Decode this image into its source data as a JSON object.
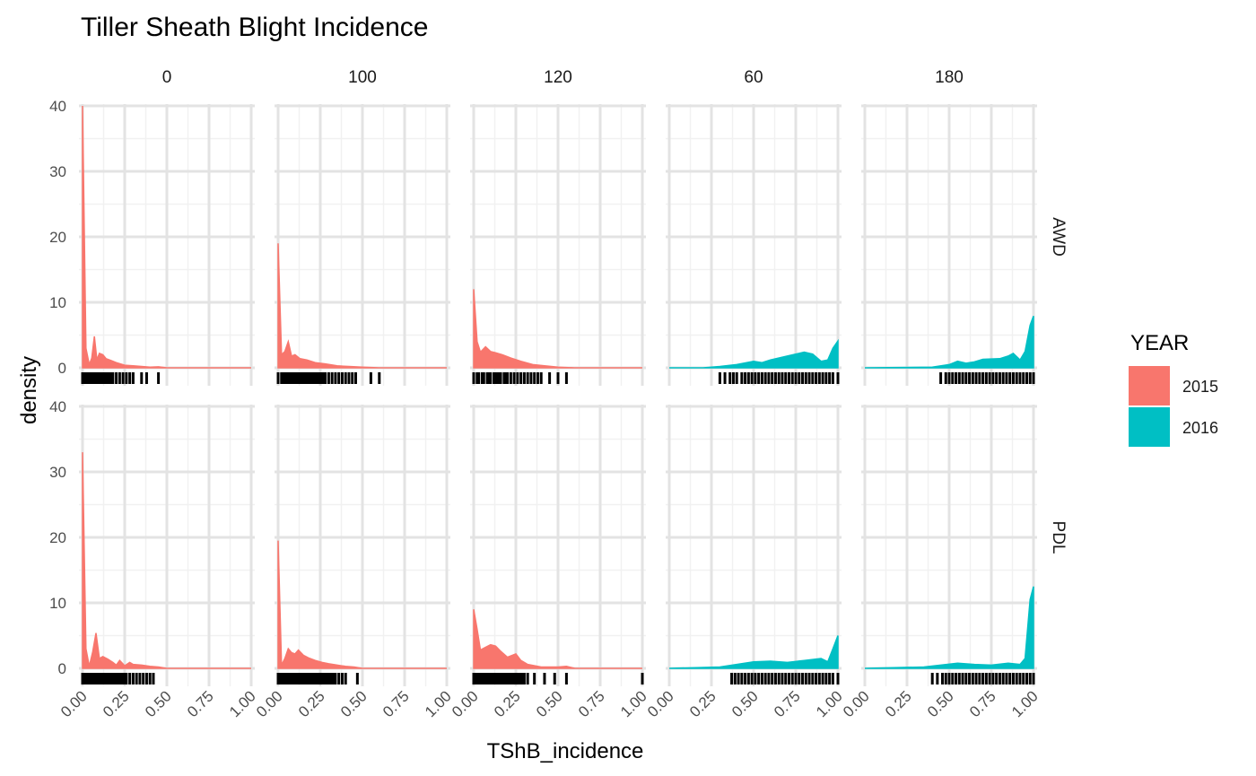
{
  "chart_data": {
    "type": "area",
    "title": "Tiller Sheath Blight Incidence",
    "xlabel": "TShB_incidence",
    "ylabel": "density",
    "xlim": [
      0,
      1
    ],
    "ylim": [
      0,
      40
    ],
    "x_ticks": [
      "0.00",
      "0.25",
      "0.50",
      "0.75",
      "1.00"
    ],
    "y_ticks": [
      "0",
      "10",
      "20",
      "30",
      "40"
    ],
    "grid": true,
    "rug": true,
    "col_facets": [
      "0",
      "100",
      "120",
      "60",
      "180"
    ],
    "row_facets": [
      "AWD",
      "PDL"
    ],
    "legend": {
      "title": "YEAR",
      "position": "right",
      "entries": [
        {
          "label": "2015",
          "color": "#F8766D"
        },
        {
          "label": "2016",
          "color": "#00BFC4"
        }
      ]
    },
    "panels": [
      {
        "row": "AWD",
        "col": "0",
        "year": "2015",
        "density": [
          [
            0,
            40
          ],
          [
            0.02,
            3
          ],
          [
            0.04,
            0.5
          ],
          [
            0.055,
            1.5
          ],
          [
            0.07,
            4.8
          ],
          [
            0.085,
            1.2
          ],
          [
            0.1,
            2.2
          ],
          [
            0.12,
            2.0
          ],
          [
            0.14,
            1.4
          ],
          [
            0.17,
            1.1
          ],
          [
            0.2,
            0.8
          ],
          [
            0.25,
            0.4
          ],
          [
            0.3,
            0.3
          ],
          [
            0.35,
            0.2
          ],
          [
            0.4,
            0.1
          ],
          [
            0.45,
            0.15
          ],
          [
            0.5,
            0
          ],
          [
            1.0,
            0
          ]
        ],
        "rug": [
          0,
          0.01,
          0.02,
          0.03,
          0.04,
          0.05,
          0.06,
          0.07,
          0.08,
          0.09,
          0.1,
          0.11,
          0.12,
          0.13,
          0.14,
          0.15,
          0.16,
          0.17,
          0.18,
          0.2,
          0.22,
          0.24,
          0.26,
          0.28,
          0.3,
          0.35,
          0.38,
          0.45
        ]
      },
      {
        "row": "AWD",
        "col": "100",
        "year": "2015",
        "density": [
          [
            0,
            19
          ],
          [
            0.02,
            2
          ],
          [
            0.04,
            2.5
          ],
          [
            0.06,
            4
          ],
          [
            0.08,
            1.8
          ],
          [
            0.1,
            2.0
          ],
          [
            0.13,
            1.4
          ],
          [
            0.17,
            1.2
          ],
          [
            0.22,
            0.8
          ],
          [
            0.28,
            0.6
          ],
          [
            0.35,
            0.3
          ],
          [
            0.42,
            0.2
          ],
          [
            0.5,
            0.1
          ],
          [
            0.6,
            0
          ],
          [
            1.0,
            0
          ]
        ],
        "rug": [
          0,
          0.02,
          0.03,
          0.04,
          0.05,
          0.06,
          0.07,
          0.08,
          0.09,
          0.1,
          0.11,
          0.12,
          0.13,
          0.14,
          0.15,
          0.16,
          0.17,
          0.18,
          0.19,
          0.2,
          0.21,
          0.22,
          0.23,
          0.24,
          0.25,
          0.26,
          0.27,
          0.28,
          0.3,
          0.32,
          0.34,
          0.36,
          0.38,
          0.4,
          0.42,
          0.44,
          0.46,
          0.55,
          0.6
        ]
      },
      {
        "row": "AWD",
        "col": "120",
        "year": "2015",
        "density": [
          [
            0,
            12
          ],
          [
            0.02,
            4
          ],
          [
            0.04,
            2.4
          ],
          [
            0.07,
            3.2
          ],
          [
            0.1,
            2.5
          ],
          [
            0.13,
            2.3
          ],
          [
            0.17,
            2.0
          ],
          [
            0.22,
            1.5
          ],
          [
            0.28,
            1.0
          ],
          [
            0.35,
            0.5
          ],
          [
            0.42,
            0.3
          ],
          [
            0.5,
            0.1
          ],
          [
            0.6,
            0
          ],
          [
            1.0,
            0
          ]
        ],
        "rug": [
          0,
          0.02,
          0.03,
          0.05,
          0.06,
          0.08,
          0.09,
          0.1,
          0.12,
          0.13,
          0.14,
          0.15,
          0.16,
          0.18,
          0.19,
          0.2,
          0.22,
          0.24,
          0.26,
          0.28,
          0.3,
          0.32,
          0.34,
          0.36,
          0.38,
          0.4,
          0.45,
          0.5,
          0.55
        ]
      },
      {
        "row": "AWD",
        "col": "60",
        "year": "2016",
        "density": [
          [
            0,
            0
          ],
          [
            0.2,
            0
          ],
          [
            0.3,
            0.2
          ],
          [
            0.4,
            0.5
          ],
          [
            0.5,
            1.0
          ],
          [
            0.55,
            0.8
          ],
          [
            0.6,
            1.2
          ],
          [
            0.7,
            1.8
          ],
          [
            0.8,
            2.4
          ],
          [
            0.85,
            2.1
          ],
          [
            0.9,
            1.0
          ],
          [
            0.94,
            1.2
          ],
          [
            0.97,
            3.0
          ],
          [
            1.0,
            4.1
          ]
        ],
        "rug": [
          0.3,
          0.33,
          0.36,
          0.38,
          0.4,
          0.43,
          0.45,
          0.47,
          0.49,
          0.51,
          0.53,
          0.55,
          0.57,
          0.59,
          0.61,
          0.63,
          0.65,
          0.67,
          0.69,
          0.71,
          0.73,
          0.75,
          0.77,
          0.79,
          0.81,
          0.83,
          0.85,
          0.87,
          0.89,
          0.91,
          0.93,
          0.95,
          0.97,
          1.0
        ]
      },
      {
        "row": "AWD",
        "col": "180",
        "year": "2016",
        "density": [
          [
            0,
            0
          ],
          [
            0.4,
            0.1
          ],
          [
            0.5,
            0.5
          ],
          [
            0.55,
            1.0
          ],
          [
            0.6,
            0.7
          ],
          [
            0.65,
            0.9
          ],
          [
            0.7,
            1.3
          ],
          [
            0.8,
            1.4
          ],
          [
            0.85,
            1.8
          ],
          [
            0.88,
            2.2
          ],
          [
            0.92,
            1.2
          ],
          [
            0.95,
            2.5
          ],
          [
            0.98,
            6.5
          ],
          [
            1.0,
            7.9
          ]
        ],
        "rug": [
          0.45,
          0.48,
          0.5,
          0.52,
          0.54,
          0.56,
          0.58,
          0.6,
          0.62,
          0.64,
          0.66,
          0.68,
          0.7,
          0.72,
          0.74,
          0.76,
          0.78,
          0.8,
          0.82,
          0.84,
          0.86,
          0.88,
          0.9,
          0.92,
          0.94,
          0.96,
          0.98,
          1.0
        ]
      },
      {
        "row": "PDL",
        "col": "0",
        "year": "2015",
        "density": [
          [
            0,
            33
          ],
          [
            0.02,
            3
          ],
          [
            0.04,
            0.3
          ],
          [
            0.06,
            2.5
          ],
          [
            0.08,
            5.4
          ],
          [
            0.1,
            1.5
          ],
          [
            0.12,
            1.8
          ],
          [
            0.15,
            1.4
          ],
          [
            0.18,
            0.9
          ],
          [
            0.2,
            0.5
          ],
          [
            0.22,
            1.2
          ],
          [
            0.25,
            0.4
          ],
          [
            0.28,
            0.9
          ],
          [
            0.3,
            0.6
          ],
          [
            0.35,
            0.5
          ],
          [
            0.4,
            0.3
          ],
          [
            0.45,
            0.2
          ],
          [
            0.5,
            0
          ],
          [
            1.0,
            0
          ]
        ],
        "rug": [
          0,
          0.01,
          0.02,
          0.03,
          0.04,
          0.05,
          0.06,
          0.07,
          0.08,
          0.09,
          0.1,
          0.11,
          0.12,
          0.13,
          0.14,
          0.15,
          0.16,
          0.17,
          0.18,
          0.19,
          0.2,
          0.21,
          0.22,
          0.23,
          0.24,
          0.25,
          0.26,
          0.28,
          0.3,
          0.32,
          0.34,
          0.36,
          0.38,
          0.4,
          0.42
        ]
      },
      {
        "row": "PDL",
        "col": "100",
        "year": "2015",
        "density": [
          [
            0,
            19.5
          ],
          [
            0.02,
            0.5
          ],
          [
            0.04,
            1.5
          ],
          [
            0.06,
            3.0
          ],
          [
            0.08,
            2.4
          ],
          [
            0.1,
            2.2
          ],
          [
            0.12,
            2.8
          ],
          [
            0.15,
            2.0
          ],
          [
            0.18,
            1.6
          ],
          [
            0.22,
            1.2
          ],
          [
            0.26,
            0.9
          ],
          [
            0.3,
            0.7
          ],
          [
            0.35,
            0.5
          ],
          [
            0.4,
            0.3
          ],
          [
            0.45,
            0.2
          ],
          [
            0.5,
            0
          ],
          [
            1.0,
            0
          ]
        ],
        "rug": [
          0,
          0.01,
          0.02,
          0.03,
          0.04,
          0.05,
          0.06,
          0.07,
          0.08,
          0.09,
          0.1,
          0.11,
          0.12,
          0.13,
          0.14,
          0.15,
          0.16,
          0.17,
          0.18,
          0.19,
          0.2,
          0.21,
          0.22,
          0.23,
          0.24,
          0.25,
          0.26,
          0.27,
          0.28,
          0.29,
          0.3,
          0.31,
          0.32,
          0.33,
          0.34,
          0.36,
          0.38,
          0.4,
          0.47
        ]
      },
      {
        "row": "PDL",
        "col": "120",
        "year": "2015",
        "density": [
          [
            0,
            9
          ],
          [
            0.02,
            6
          ],
          [
            0.04,
            2.8
          ],
          [
            0.07,
            3.2
          ],
          [
            0.1,
            3.6
          ],
          [
            0.13,
            3.4
          ],
          [
            0.16,
            2.6
          ],
          [
            0.2,
            1.7
          ],
          [
            0.25,
            2.2
          ],
          [
            0.28,
            1.2
          ],
          [
            0.32,
            0.6
          ],
          [
            0.4,
            0.2
          ],
          [
            0.5,
            0.2
          ],
          [
            0.55,
            0.3
          ],
          [
            0.6,
            0
          ],
          [
            1.0,
            0
          ]
        ],
        "rug": [
          0,
          0.01,
          0.02,
          0.03,
          0.04,
          0.05,
          0.06,
          0.07,
          0.08,
          0.09,
          0.1,
          0.11,
          0.12,
          0.13,
          0.14,
          0.15,
          0.16,
          0.17,
          0.18,
          0.19,
          0.2,
          0.21,
          0.22,
          0.23,
          0.24,
          0.25,
          0.26,
          0.27,
          0.28,
          0.29,
          0.3,
          0.32,
          0.36,
          0.42,
          0.48,
          0.55,
          1.0
        ]
      },
      {
        "row": "PDL",
        "col": "60",
        "year": "2016",
        "density": [
          [
            0,
            0
          ],
          [
            0.3,
            0.2
          ],
          [
            0.4,
            0.6
          ],
          [
            0.5,
            1.0
          ],
          [
            0.6,
            1.1
          ],
          [
            0.7,
            0.9
          ],
          [
            0.8,
            1.2
          ],
          [
            0.9,
            1.5
          ],
          [
            0.94,
            1.0
          ],
          [
            0.97,
            3.0
          ],
          [
            1.0,
            5.0
          ]
        ],
        "rug": [
          0.37,
          0.39,
          0.41,
          0.43,
          0.45,
          0.47,
          0.49,
          0.51,
          0.53,
          0.55,
          0.57,
          0.59,
          0.61,
          0.63,
          0.65,
          0.67,
          0.69,
          0.71,
          0.73,
          0.75,
          0.77,
          0.79,
          0.81,
          0.83,
          0.85,
          0.87,
          0.89,
          0.91,
          0.93,
          0.95,
          0.97,
          1.0
        ]
      },
      {
        "row": "PDL",
        "col": "180",
        "year": "2016",
        "density": [
          [
            0,
            0
          ],
          [
            0.35,
            0.2
          ],
          [
            0.45,
            0.5
          ],
          [
            0.55,
            0.8
          ],
          [
            0.65,
            0.6
          ],
          [
            0.75,
            0.5
          ],
          [
            0.85,
            0.8
          ],
          [
            0.92,
            0.6
          ],
          [
            0.95,
            1.5
          ],
          [
            0.98,
            10.5
          ],
          [
            1.0,
            12.5
          ]
        ],
        "rug": [
          0.4,
          0.43,
          0.46,
          0.48,
          0.5,
          0.52,
          0.54,
          0.56,
          0.58,
          0.6,
          0.62,
          0.64,
          0.66,
          0.68,
          0.7,
          0.72,
          0.74,
          0.76,
          0.78,
          0.8,
          0.82,
          0.84,
          0.86,
          0.88,
          0.9,
          0.92,
          0.94,
          0.96,
          0.98,
          1.0
        ]
      }
    ]
  }
}
